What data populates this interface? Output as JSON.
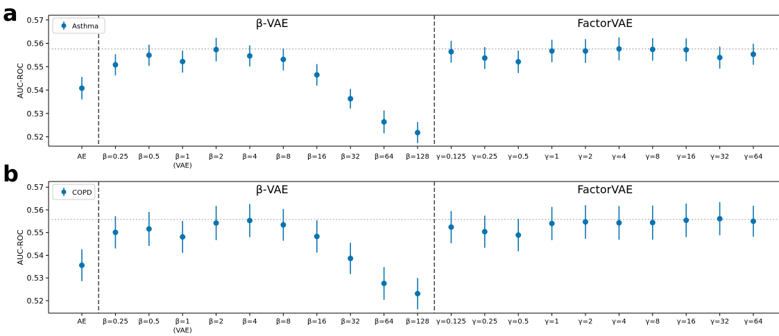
{
  "chart_data": [
    {
      "type": "scatter",
      "panel_label": "a",
      "ylabel": "AUC-ROC",
      "ylim": [
        0.516,
        0.572
      ],
      "yticks": [
        0.52,
        0.53,
        0.54,
        0.55,
        0.56,
        0.57
      ],
      "ytick_labels": [
        "0.52",
        "0.53",
        "0.54",
        "0.55",
        "0.56",
        "0.57"
      ],
      "group_labels": [
        "β-VAE",
        "FactorVAE"
      ],
      "legend": {
        "label": "Asthma",
        "placement": "top-left"
      },
      "categories": [
        "AE",
        "β=0.25",
        "β=0.5",
        "β=1",
        "β=2",
        "β=4",
        "β=8",
        "β=16",
        "β=32",
        "β=64",
        "β=128",
        "γ=0.125",
        "γ=0.25",
        "γ=0.5",
        "γ=1",
        "γ=2",
        "γ=4",
        "γ=8",
        "γ=16",
        "γ=32",
        "γ=64"
      ],
      "category_sublabels": {
        "3": "(VAE)"
      },
      "values": [
        0.5408,
        0.5508,
        0.5549,
        0.5522,
        0.5573,
        0.5546,
        0.5531,
        0.5465,
        0.5363,
        0.5264,
        0.5218,
        0.5564,
        0.5537,
        0.5521,
        0.5567,
        0.5567,
        0.5576,
        0.5574,
        0.5572,
        0.5539,
        0.5553
      ],
      "errors": [
        0.0048,
        0.0045,
        0.0045,
        0.0047,
        0.005,
        0.0045,
        0.0047,
        0.0046,
        0.0042,
        0.0049,
        0.0045,
        0.0047,
        0.0047,
        0.0048,
        0.0048,
        0.0051,
        0.0049,
        0.0048,
        0.0049,
        0.0047,
        0.0045
      ],
      "reference_line": 0.5576,
      "group_separators_after": [
        0,
        10
      ],
      "color": "#0a74b0"
    },
    {
      "type": "scatter",
      "panel_label": "b",
      "ylabel": "AUC-ROC",
      "ylim": [
        0.5145,
        0.5725
      ],
      "yticks": [
        0.52,
        0.53,
        0.54,
        0.55,
        0.56,
        0.57
      ],
      "ytick_labels": [
        "0.52",
        "0.53",
        "0.54",
        "0.55",
        "0.56",
        "0.57"
      ],
      "group_labels": [
        "β-VAE",
        "FactorVAE"
      ],
      "legend": {
        "label": "COPD",
        "placement": "top-left"
      },
      "categories": [
        "AE",
        "β=0.25",
        "β=0.5",
        "β=1",
        "β=2",
        "β=4",
        "β=8",
        "β=16",
        "β=32",
        "β=64",
        "β=128",
        "γ=0.125",
        "γ=0.25",
        "γ=0.5",
        "γ=1",
        "γ=2",
        "γ=4",
        "γ=8",
        "γ=16",
        "γ=32",
        "γ=64"
      ],
      "category_sublabels": {
        "3": "(VAE)"
      },
      "values": [
        0.5356,
        0.5501,
        0.5516,
        0.5481,
        0.5542,
        0.5553,
        0.5534,
        0.5483,
        0.5386,
        0.5276,
        0.5231,
        0.5524,
        0.5504,
        0.5489,
        0.554,
        0.5547,
        0.5543,
        0.5544,
        0.5554,
        0.5561,
        0.555
      ],
      "errors": [
        0.007,
        0.0071,
        0.0075,
        0.007,
        0.0075,
        0.0073,
        0.007,
        0.0071,
        0.0069,
        0.0072,
        0.0069,
        0.0071,
        0.0071,
        0.0071,
        0.0073,
        0.0074,
        0.0074,
        0.0075,
        0.0074,
        0.0073,
        0.0068
      ],
      "reference_line": 0.5558,
      "group_separators_after": [
        0,
        10
      ],
      "color": "#0a74b0"
    }
  ]
}
